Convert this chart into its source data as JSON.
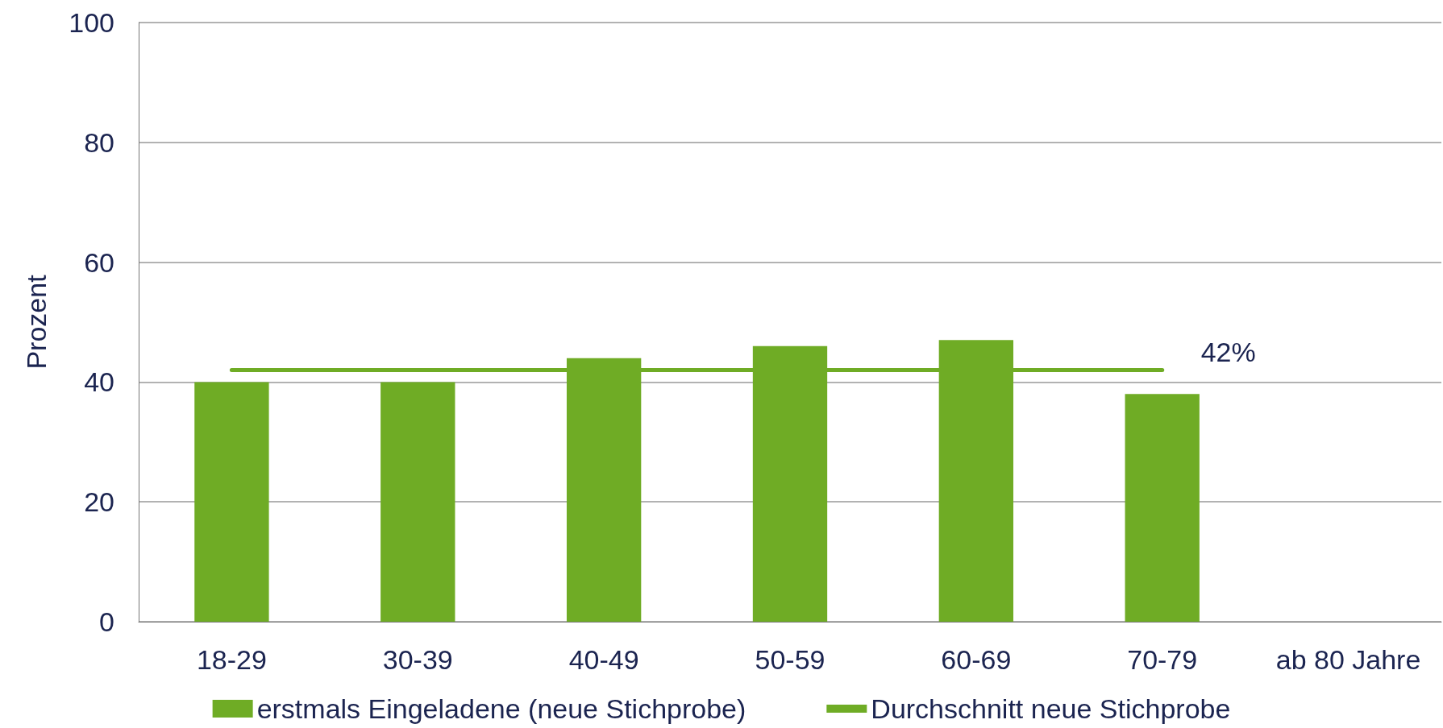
{
  "chart_data": {
    "type": "bar",
    "ylabel": "Prozent",
    "categories": [
      "18-29",
      "30-39",
      "40-49",
      "50-59",
      "60-69",
      "70-79",
      "ab 80 Jahre"
    ],
    "series": [
      {
        "name": "erstmals Eingeladene (neue Stichprobe)",
        "color": "#6fac25",
        "values": [
          40,
          40,
          44,
          46,
          47,
          38,
          null
        ]
      },
      {
        "name": "Durchschnitt neue Stichprobe",
        "type": "line",
        "color": "#6fac25",
        "values": [
          42,
          42,
          42,
          42,
          42,
          42,
          null
        ]
      }
    ],
    "ylim": [
      0,
      100
    ],
    "yticks": [
      0,
      20,
      40,
      60,
      80,
      100
    ],
    "grid": "y",
    "legend": "bottom",
    "marker": "none",
    "line_style": "solid",
    "annotations": [
      {
        "text": "42%",
        "x": "70-79",
        "y": 42
      }
    ]
  }
}
